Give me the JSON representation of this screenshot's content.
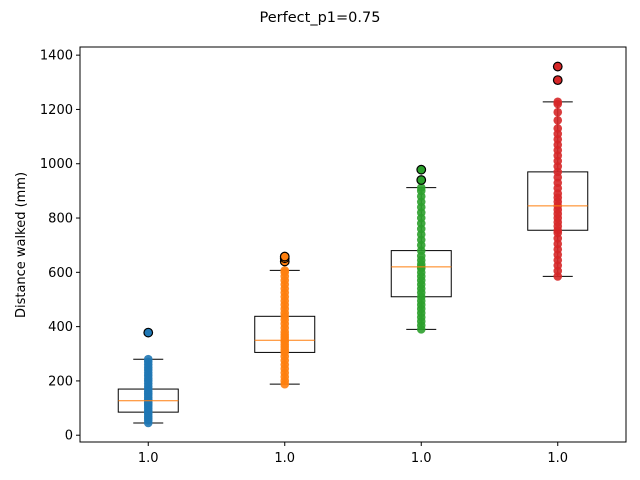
{
  "chart_data": {
    "type": "box",
    "title": "Perfect_p1=0.75",
    "xlabel": "",
    "ylabel": "Distance walked (mm)",
    "ylim": [
      -25,
      1430
    ],
    "yticks": [
      0,
      200,
      400,
      600,
      800,
      1000,
      1200,
      1400
    ],
    "categories": [
      "1.0",
      "1.0",
      "1.0",
      "1.0"
    ],
    "grid": false,
    "boxes": [
      {
        "color": "#1f77b4",
        "whisker_low": 45,
        "q1": 85,
        "median": 127,
        "q3": 170,
        "whisker_high": 280,
        "fliers": [
          378
        ],
        "points": [
          45,
          55,
          62,
          70,
          78,
          85,
          92,
          100,
          108,
          115,
          120,
          127,
          133,
          140,
          148,
          155,
          162,
          170,
          180,
          190,
          200,
          210,
          220,
          230,
          240,
          250,
          260,
          270,
          280
        ]
      },
      {
        "color": "#ff7f0e",
        "whisker_low": 188,
        "q1": 305,
        "median": 350,
        "q3": 438,
        "whisker_high": 607,
        "fliers": [
          640,
          652,
          658
        ],
        "points": [
          188,
          200,
          215,
          230,
          245,
          260,
          275,
          290,
          305,
          315,
          325,
          335,
          345,
          350,
          360,
          370,
          380,
          395,
          410,
          425,
          438,
          450,
          465,
          480,
          495,
          510,
          525,
          540,
          555,
          570,
          585,
          600,
          607
        ]
      },
      {
        "color": "#2ca02c",
        "whisker_low": 390,
        "q1": 510,
        "median": 620,
        "q3": 680,
        "whisker_high": 912,
        "fliers": [
          940,
          978
        ],
        "points": [
          390,
          405,
          420,
          435,
          450,
          465,
          480,
          495,
          510,
          525,
          540,
          555,
          570,
          585,
          600,
          615,
          620,
          630,
          645,
          660,
          680,
          700,
          720,
          740,
          760,
          780,
          800,
          820,
          840,
          860,
          880,
          900,
          912
        ]
      },
      {
        "color": "#d62728",
        "whisker_low": 585,
        "q1": 755,
        "median": 845,
        "q3": 970,
        "whisker_high": 1228,
        "fliers": [
          1308,
          1358
        ],
        "points": [
          585,
          605,
          625,
          645,
          665,
          685,
          705,
          725,
          745,
          755,
          770,
          785,
          800,
          815,
          830,
          845,
          860,
          875,
          890,
          910,
          930,
          950,
          970,
          990,
          1010,
          1030,
          1050,
          1070,
          1090,
          1110,
          1130,
          1160,
          1190,
          1220,
          1228
        ]
      }
    ]
  }
}
